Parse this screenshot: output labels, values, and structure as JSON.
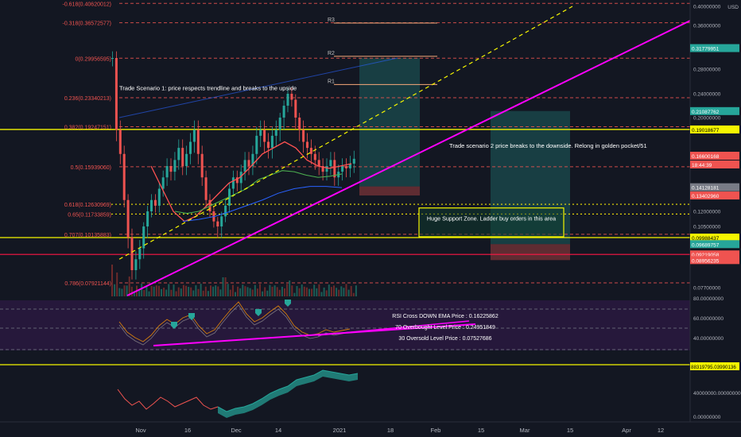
{
  "colors": {
    "background": "#131722",
    "fib_line": "#ef5350",
    "yellow": "#f5f500",
    "magenta": "#ff00ff",
    "green": "#26a69a",
    "red": "#ef5350",
    "rsi_panel": "#2d1a44"
  },
  "price_scale": {
    "unit": "USD",
    "ticks": [
      "0.40000000",
      "0.36000000",
      "0.32000000",
      "0.28000000",
      "0.24000000",
      "0.20000000",
      "0.16000000",
      "0.12000000",
      "0.10500000",
      "0.07700000",
      "80.00000000"
    ],
    "badges": [
      {
        "text": "0.31779951",
        "price": 0.3178,
        "color": "#26a69a",
        "fg": "#ffffff"
      },
      {
        "text": "0.21087762",
        "price": 0.2109,
        "color": "#26a69a",
        "fg": "#ffffff"
      },
      {
        "text": "0.19018677",
        "price": 0.1902,
        "color": "#f5f500",
        "fg": "#000000"
      },
      {
        "text": "0.16600168",
        "price": 0.166,
        "color": "#ef5350",
        "fg": "#ffffff"
      },
      {
        "text": "18:44:39",
        "price": 0.1555,
        "color": "#ef5350",
        "fg": "#ffffff"
      },
      {
        "text": "0.14128181",
        "price": 0.1413,
        "color": "#787b86",
        "fg": "#ffffff"
      },
      {
        "text": "0.13402960",
        "price": 0.134,
        "color": "#ef5350",
        "fg": "#ffffff"
      },
      {
        "text": "0.09988437",
        "price": 0.0999,
        "color": "#f5f500",
        "fg": "#000000"
      },
      {
        "text": "0.09689757",
        "price": 0.0969,
        "color": "#26a69a",
        "fg": "#ffffff"
      },
      {
        "text": "0.09219058",
        "price": 0.0922,
        "color": "#ef5350",
        "fg": "#ffffff"
      },
      {
        "text": "0.08956235",
        "price": 0.0896,
        "color": "#ef5350",
        "fg": "#ffffff"
      }
    ]
  },
  "fib_levels": [
    {
      "label": "-0.618(0.40620012)",
      "price": 0.4062
    },
    {
      "label": "-0.318(0.36572577)",
      "price": 0.3657
    },
    {
      "label": "0(0.29956595)",
      "price": 0.2996
    },
    {
      "label": "0.236(0.23340213)",
      "price": 0.2334
    },
    {
      "label": "0.382(0.19247151)",
      "price": 0.1925
    },
    {
      "label": "0.5(0.15939060)",
      "price": 0.1594
    },
    {
      "label": "0.618(0.12630969)",
      "price": 0.1263
    },
    {
      "label": "0.65(0.11733859)",
      "price": 0.1173
    },
    {
      "label": "0.707(0.10135883)",
      "price": 0.1014
    },
    {
      "label": "0.786(0.07921144)",
      "price": 0.0792
    }
  ],
  "pivots": [
    {
      "label": "R3",
      "price": 0.365
    },
    {
      "label": "R2",
      "price": 0.303
    },
    {
      "label": "R1",
      "price": 0.255
    }
  ],
  "annotations": {
    "scenario1": "Trade Scenario 1: price respects trendline and breaks to the upside",
    "scenario2": "Trade scenario 2 price breaks to the downside. Relong in golden pocket/51",
    "support": "Huge Support Zone. Ladder buy orders in this area"
  },
  "rsi": {
    "labels": [
      "RSI Cross DOWN EMA Price : 0.16225862",
      "70 Overbought Level Price : 0.24951849",
      "30 Oversold Level Price : 0.07527686"
    ],
    "ticks": [
      "60.00000000",
      "40.00000000"
    ]
  },
  "lower_pane": {
    "badge": "88319795.03990136",
    "ticks": [
      "40000000.00000000",
      "0.00000000"
    ]
  },
  "time_axis": [
    "Nov",
    "16",
    "Dec",
    "14",
    "2021",
    "18",
    "Feb",
    "15",
    "Mar",
    "15",
    "Apr",
    "12"
  ],
  "chart_data": {
    "type": "candlestick",
    "xlabel": "",
    "ylabel": "USD",
    "x_range": [
      "Nov",
      "Apr 12"
    ],
    "ylim": [
      0.066,
      0.42
    ],
    "grid": false,
    "candles_summary": [
      {
        "x": "late Oct",
        "open": 0.3,
        "high": 0.3,
        "low": 0.17,
        "close": 0.19
      },
      {
        "x": "early Nov",
        "open": 0.19,
        "high": 0.2,
        "low": 0.075,
        "close": 0.09
      },
      {
        "x": "mid Nov",
        "open": 0.09,
        "high": 0.16,
        "low": 0.085,
        "close": 0.15
      },
      {
        "x": "late Nov",
        "open": 0.15,
        "high": 0.19,
        "low": 0.1,
        "close": 0.13
      },
      {
        "x": "Dec 14",
        "open": 0.17,
        "high": 0.3,
        "low": 0.16,
        "close": 0.24
      },
      {
        "x": "late Dec",
        "open": 0.19,
        "high": 0.2,
        "low": 0.14,
        "close": 0.16
      },
      {
        "x": "Jan",
        "open": 0.16,
        "high": 0.18,
        "low": 0.14,
        "close": 0.166
      }
    ]
  }
}
